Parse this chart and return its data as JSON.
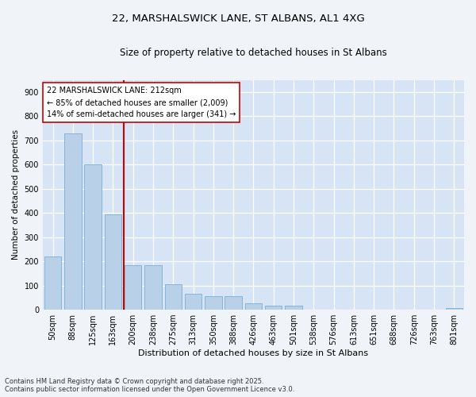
{
  "title_line1": "22, MARSHALSWICK LANE, ST ALBANS, AL1 4XG",
  "title_line2": "Size of property relative to detached houses in St Albans",
  "xlabel": "Distribution of detached houses by size in St Albans",
  "ylabel": "Number of detached properties",
  "categories": [
    "50sqm",
    "88sqm",
    "125sqm",
    "163sqm",
    "200sqm",
    "238sqm",
    "275sqm",
    "313sqm",
    "350sqm",
    "388sqm",
    "426sqm",
    "463sqm",
    "501sqm",
    "538sqm",
    "576sqm",
    "613sqm",
    "651sqm",
    "688sqm",
    "726sqm",
    "763sqm",
    "801sqm"
  ],
  "values": [
    220,
    730,
    600,
    395,
    185,
    185,
    105,
    65,
    55,
    55,
    28,
    18,
    18,
    0,
    0,
    0,
    0,
    0,
    0,
    0,
    8
  ],
  "bar_color": "#b8d0e8",
  "bar_edge_color": "#7aafd4",
  "vline_color": "#cc0000",
  "vline_position": 3.55,
  "annotation_text": "22 MARSHALSWICK LANE: 212sqm\n← 85% of detached houses are smaller (2,009)\n14% of semi-detached houses are larger (341) →",
  "ylim_max": 950,
  "yticks": [
    0,
    100,
    200,
    300,
    400,
    500,
    600,
    700,
    800,
    900
  ],
  "fig_bg_color": "#f0f4f8",
  "axes_bg_color": "#d6e4f5",
  "grid_color": "#ffffff",
  "footer_line1": "Contains HM Land Registry data © Crown copyright and database right 2025.",
  "footer_line2": "Contains public sector information licensed under the Open Government Licence v3.0."
}
